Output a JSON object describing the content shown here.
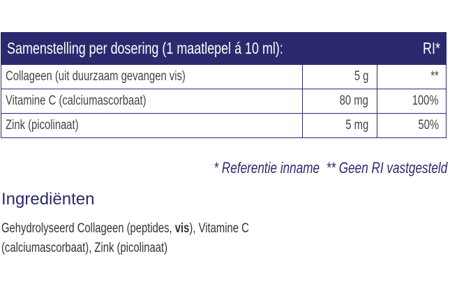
{
  "table": {
    "header": {
      "title": "Samenstelling per dosering (1 maatlepel á 10 ml):",
      "ri": "RI*"
    },
    "rows": [
      {
        "name": "Collageen (uit duurzaam gevangen vis)",
        "amount": "5 g",
        "ri": "**"
      },
      {
        "name": "Vitamine C (calciumascorbaat)",
        "amount": "80 mg",
        "ri": "100%"
      },
      {
        "name": "Zink (picolinaat)",
        "amount": "5 mg",
        "ri": "50%"
      }
    ]
  },
  "footnote": "* Referentie inname  ** Geen RI vastgesteld",
  "ingredients": {
    "heading": "Ingrediënten",
    "text_before": "Gehydrolyseerd Collageen (peptides, ",
    "bold": "vis",
    "text_after_line1": "), Vitamine C",
    "line2": "(calciumascorbaat), Zink (picolinaat)"
  },
  "colors": {
    "navy": "#2b2a6e",
    "text": "#3a3a3a"
  }
}
